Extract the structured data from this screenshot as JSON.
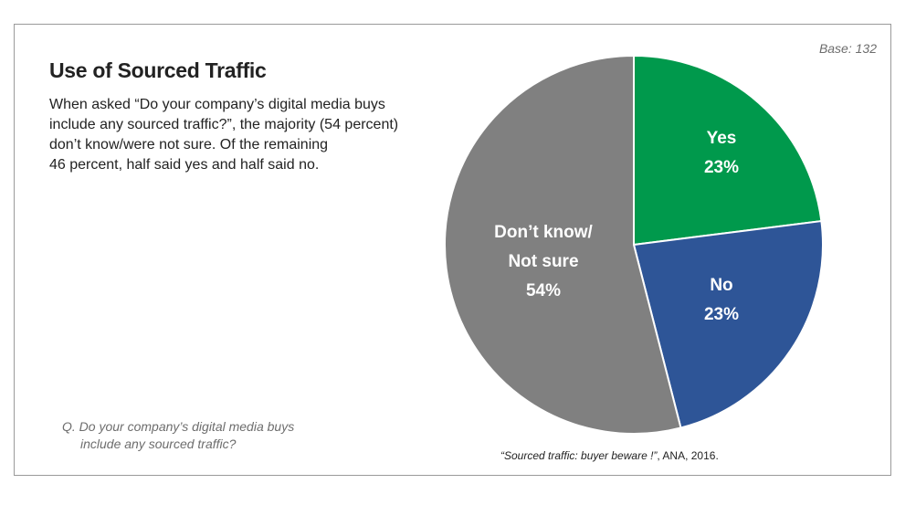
{
  "header": {
    "base_note": "Base: 132",
    "title": "Use of Sourced Traffic",
    "description_lines": [
      "When asked “Do your company’s digital media buys",
      "include any sourced traffic?”, the majority (54 percent)",
      "don’t know/were not sure. Of the remaining",
      "46 percent, half said yes and half said no."
    ]
  },
  "footer": {
    "question_lines": [
      "Q. Do your company’s digital media buys",
      "include any sourced traffic?"
    ],
    "source_title": "“Sourced traffic: buyer beware !”",
    "source_rest": ", ANA, 2016."
  },
  "chart_data": {
    "type": "pie",
    "title": "Use of Sourced Traffic",
    "slices": [
      {
        "label_lines": [
          "Yes"
        ],
        "value": 23,
        "value_label": "23%",
        "color": "#00994c"
      },
      {
        "label_lines": [
          "No"
        ],
        "value": 23,
        "value_label": "23%",
        "color": "#2e5597"
      },
      {
        "label_lines": [
          "Don’t know/",
          "Not sure"
        ],
        "value": 54,
        "value_label": "54%",
        "color": "#808080"
      }
    ],
    "start_angle": "12 o'clock",
    "direction": "clockwise",
    "slice_border_color": "#ffffff",
    "label_color": "#ffffff"
  }
}
